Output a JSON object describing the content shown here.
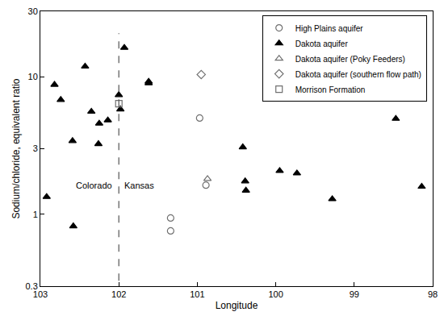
{
  "chart_data": {
    "type": "scatter",
    "x_label": "Longitude",
    "y_label": "Sodium/chloride, equivalent ratio",
    "log": "y",
    "grid": false,
    "legend": "upper right",
    "xlim": [
      103,
      98
    ],
    "xticks": [
      103,
      102,
      101,
      100,
      99,
      98
    ],
    "ylim": [
      0.3,
      30
    ],
    "yticks": [
      0.3,
      1,
      3,
      10,
      30
    ],
    "series": [
      {
        "name": "High Plains aquifer",
        "marker": "circle-open",
        "color": "#707070",
        "x": [
          100.97,
          100.89,
          101.34,
          101.34
        ],
        "values": [
          5.02,
          1.63,
          0.94,
          0.757
        ]
      },
      {
        "name": "Dakota aquifer",
        "marker": "triangle-up",
        "color": "#000000",
        "x": [
          102.92,
          102.82,
          102.74,
          102.59,
          102.58,
          102.43,
          102.35,
          102.25,
          102.26,
          102.14,
          102.0,
          101.98,
          101.93,
          101.62,
          101.62,
          100.42,
          100.39,
          100.38,
          99.95,
          99.73,
          99.28,
          98.47,
          98.14
        ],
        "values": [
          1.34,
          8.77,
          6.81,
          3.42,
          0.82,
          11.9,
          5.59,
          4.58,
          3.25,
          4.83,
          7.38,
          5.81,
          16.3,
          9.24,
          9.0,
          3.08,
          1.74,
          1.49,
          2.07,
          1.99,
          1.29,
          4.96,
          1.59
        ]
      },
      {
        "name": "Dakota aquifer (Poky Feeders)",
        "marker": "triangle-up-open",
        "color": "#707070",
        "x": [
          100.87
        ],
        "values": [
          1.81
        ]
      },
      {
        "name": "Dakota aquifer (southern flow path)",
        "marker": "diamond-open",
        "color": "#707070",
        "x": [
          100.95
        ],
        "values": [
          10.4
        ]
      },
      {
        "name": "Morrison Formation",
        "marker": "square-open",
        "color": "#707070",
        "x": [
          102.0
        ],
        "values": [
          6.38
        ]
      }
    ],
    "reference_lines": [
      {
        "x": 102,
        "line_style": "dash",
        "color": "#555555"
      }
    ],
    "annotations": [
      {
        "text": "Colorado",
        "x": 102.32,
        "y": 1.63
      },
      {
        "text": "Kansas",
        "x": 101.74,
        "y": 1.63
      }
    ]
  }
}
